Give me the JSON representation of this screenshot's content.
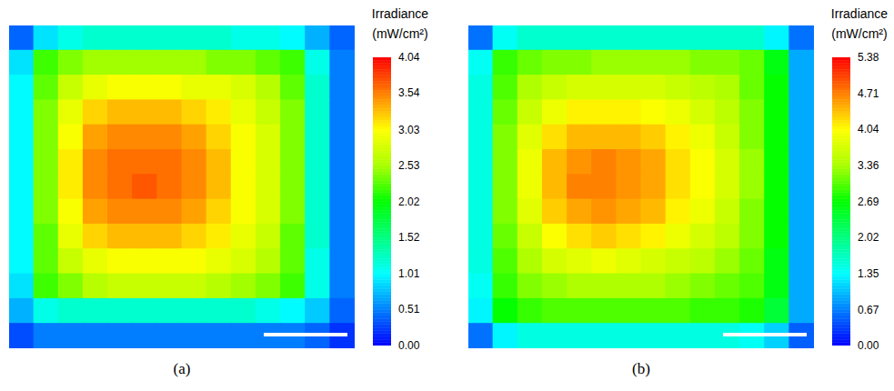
{
  "chart_data": [
    {
      "type": "heatmap",
      "title": "(a)",
      "tick_labels": false,
      "cells": [
        [
          0.4,
          0.9,
          1.1,
          1.2,
          1.2,
          1.2,
          1.2,
          1.2,
          1.2,
          1.1,
          1.1,
          1.0,
          0.7,
          0.4
        ],
        [
          0.9,
          2.2,
          2.4,
          2.5,
          2.5,
          2.5,
          2.5,
          2.5,
          2.4,
          2.4,
          2.3,
          2.2,
          1.1,
          0.5
        ],
        [
          1.0,
          2.3,
          2.7,
          2.9,
          3.0,
          3.0,
          3.0,
          2.9,
          2.9,
          2.8,
          2.6,
          2.3,
          1.2,
          0.5
        ],
        [
          1.0,
          2.4,
          2.9,
          3.2,
          3.3,
          3.3,
          3.3,
          3.2,
          3.1,
          2.9,
          2.7,
          2.4,
          1.2,
          0.5
        ],
        [
          1.0,
          2.4,
          3.0,
          3.4,
          3.5,
          3.5,
          3.5,
          3.4,
          3.2,
          3.0,
          2.8,
          2.4,
          1.2,
          0.5
        ],
        [
          1.0,
          2.4,
          3.1,
          3.5,
          3.6,
          3.6,
          3.6,
          3.5,
          3.3,
          3.0,
          2.8,
          2.4,
          1.2,
          0.5
        ],
        [
          1.0,
          2.4,
          3.1,
          3.5,
          3.6,
          3.7,
          3.6,
          3.5,
          3.3,
          3.0,
          2.8,
          2.4,
          1.2,
          0.5
        ],
        [
          1.0,
          2.4,
          3.0,
          3.4,
          3.5,
          3.5,
          3.5,
          3.4,
          3.2,
          3.0,
          2.8,
          2.4,
          1.2,
          0.5
        ],
        [
          1.0,
          2.3,
          2.9,
          3.2,
          3.3,
          3.3,
          3.3,
          3.2,
          3.1,
          2.9,
          2.7,
          2.3,
          1.2,
          0.5
        ],
        [
          1.0,
          2.3,
          2.7,
          2.9,
          3.0,
          3.0,
          3.0,
          3.0,
          2.9,
          2.8,
          2.6,
          2.3,
          1.1,
          0.5
        ],
        [
          0.9,
          2.2,
          2.4,
          2.6,
          2.7,
          2.7,
          2.7,
          2.7,
          2.6,
          2.5,
          2.4,
          2.2,
          1.1,
          0.5
        ],
        [
          0.7,
          1.1,
          1.2,
          1.2,
          1.2,
          1.2,
          1.2,
          1.2,
          1.2,
          1.2,
          1.1,
          1.0,
          0.8,
          0.4
        ],
        [
          0.3,
          0.5,
          0.5,
          0.5,
          0.5,
          0.5,
          0.5,
          0.5,
          0.5,
          0.5,
          0.5,
          0.5,
          0.4,
          0.2
        ]
      ],
      "colorbar": {
        "label": "Irradiance (mW/cm²)",
        "lim": [
          0,
          4.04
        ],
        "ticks": [
          {
            "value": 0,
            "label": "0.00"
          },
          0.51,
          1.01,
          1.52,
          2.02,
          2.53,
          3.03,
          3.54,
          4.04
        ]
      }
    },
    {
      "type": "heatmap",
      "title": "(b)",
      "tick_labels": false,
      "cells": [
        [
          0.6,
          1.4,
          1.6,
          1.6,
          1.6,
          1.6,
          1.6,
          1.6,
          1.6,
          1.6,
          1.6,
          1.6,
          1.3,
          0.6
        ],
        [
          1.4,
          2.9,
          3.1,
          3.2,
          3.2,
          3.3,
          3.3,
          3.3,
          3.3,
          3.2,
          3.2,
          3.1,
          2.6,
          0.9
        ],
        [
          1.5,
          3.0,
          3.4,
          3.6,
          3.7,
          3.7,
          3.7,
          3.7,
          3.6,
          3.5,
          3.4,
          3.1,
          2.7,
          0.9
        ],
        [
          1.5,
          3.1,
          3.6,
          3.9,
          4.1,
          4.1,
          4.1,
          4.0,
          3.9,
          3.7,
          3.5,
          3.2,
          2.7,
          0.9
        ],
        [
          1.5,
          3.2,
          3.8,
          4.2,
          4.4,
          4.4,
          4.4,
          4.3,
          4.1,
          3.9,
          3.6,
          3.2,
          2.7,
          0.9
        ],
        [
          1.5,
          3.2,
          3.9,
          4.4,
          4.6,
          4.7,
          4.6,
          4.5,
          4.2,
          4.0,
          3.7,
          3.3,
          2.7,
          0.9
        ],
        [
          1.5,
          3.2,
          3.9,
          4.4,
          4.7,
          4.7,
          4.6,
          4.5,
          4.2,
          4.0,
          3.7,
          3.3,
          2.7,
          0.9
        ],
        [
          1.5,
          3.2,
          3.8,
          4.3,
          4.5,
          4.6,
          4.5,
          4.4,
          4.1,
          3.9,
          3.6,
          3.2,
          2.7,
          0.9
        ],
        [
          1.5,
          3.1,
          3.6,
          4.0,
          4.2,
          4.3,
          4.2,
          4.1,
          3.9,
          3.7,
          3.5,
          3.2,
          2.7,
          0.9
        ],
        [
          1.5,
          3.0,
          3.4,
          3.7,
          3.8,
          3.9,
          3.8,
          3.7,
          3.6,
          3.5,
          3.3,
          3.1,
          2.6,
          0.9
        ],
        [
          1.4,
          2.9,
          3.2,
          3.3,
          3.4,
          3.4,
          3.4,
          3.4,
          3.3,
          3.2,
          3.1,
          3.0,
          2.6,
          0.9
        ],
        [
          1.3,
          2.7,
          2.9,
          3.0,
          3.0,
          3.0,
          3.0,
          3.0,
          3.0,
          2.9,
          2.9,
          2.8,
          2.4,
          0.9
        ],
        [
          0.6,
          1.3,
          1.5,
          1.5,
          1.5,
          1.5,
          1.5,
          1.5,
          1.5,
          1.5,
          1.5,
          1.4,
          1.1,
          0.5
        ]
      ],
      "colorbar": {
        "label": "Irradiance (mW/cm²)",
        "lim": [
          0,
          5.38
        ],
        "ticks": [
          {
            "value": 0,
            "label": "0.00"
          },
          0.67,
          1.35,
          2.02,
          2.69,
          3.36,
          4.04,
          4.71,
          5.38
        ]
      }
    }
  ]
}
